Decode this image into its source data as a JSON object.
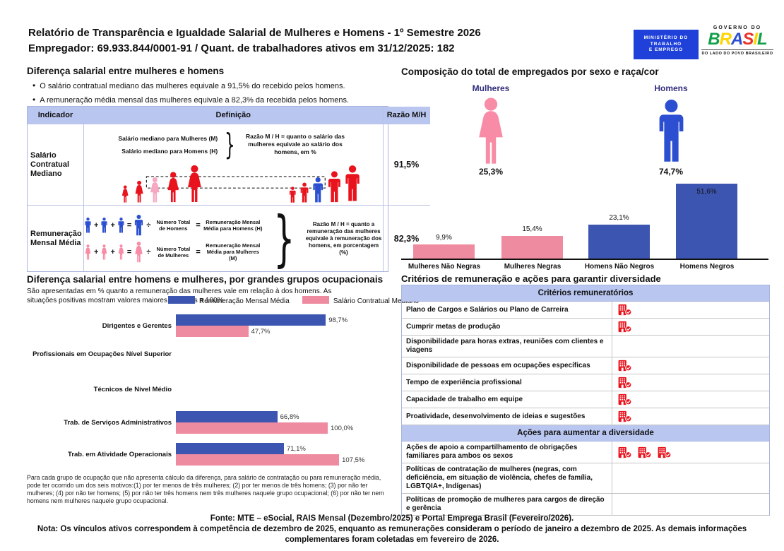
{
  "header": {
    "title": "Relatório de Transparência e Igualdade Salarial de Mulheres e Homens - 1º Semestre 2026",
    "employer_line": "Empregador: 69.933.844/0001-91 / Quant. de trabalhadores ativos em 31/12/2025: 182",
    "logos": {
      "ministry_lines": [
        "MINISTÉRIO DO",
        "TRABALHO",
        "E EMPREGO"
      ],
      "gov_top": "GOVERNO DO",
      "gov_name": "BRASIL",
      "gov_tagline": "DO LADO DO POVO BRASILEIRO"
    }
  },
  "salary_gap": {
    "title": "Diferença salarial entre mulheres e homens",
    "bullets": [
      "O salário contratual mediano das mulheres equivale a 91,5% do recebido pelos homens.",
      "A remuneração média mensal das mulheres equivale a 82,3% da recebida pelos homens."
    ],
    "table": {
      "headers": [
        "Indicador",
        "Definição",
        "Razão M/H"
      ],
      "rows": [
        {
          "indicator": "Salário Contratual Mediano",
          "def_lines": [
            "Salário mediano para Mulheres (M)",
            "Salário mediano para Homens (H)"
          ],
          "def_note": "Razão M / H = quanto o salário das mulheres equivale ao salário dos homens, em %",
          "ratio": "91,5%"
        },
        {
          "indicator": "Remuneração Mensal Média",
          "formula_men": {
            "divisor": "Número Total de Homens",
            "result": "Remuneração Mensal Média para Homens (H)"
          },
          "formula_women": {
            "divisor": "Número Total de Mulheres",
            "result": "Remuneração Mensal Média para Mulheres (M)"
          },
          "def_note": "Razão M / H = quanto a remuneração das mulheres equivale à remuneração dos homens, em porcentagem (%)",
          "ratio": "82,3%"
        }
      ]
    }
  },
  "occupation_gap": {
    "title": "Diferença salarial entre homens e mulheres, por grandes grupos ocupacionais",
    "subtitle": "São apresentadas em % quanto a remuneração das mulheres vale em relação à dos homens. As situações positivas mostram valores maiores ou iguais a 100%",
    "legend": [
      {
        "label": "Remuneração Mensal Média",
        "color": "#3c55b0"
      },
      {
        "label": "Salário Contratual Mediano",
        "color": "#ef8ba1"
      }
    ],
    "footnote": "Para cada grupo de ocupação que não apresenta cálculo da diferença, para salário de contratação ou para remuneração média, pode ter ocorrido um dos seis motivos:(1) por ter menos de três mulheres; (2) por ter menos de três homens; (3) por não ter mulheres; (4) por não ter homens; (5) por não ter três homens nem três mulheres naquele grupo ocupacional; (6) por não ter nem homens nem mulheres naquele grupo ocupacional."
  },
  "composition": {
    "title": "Composição do total de empregados por sexo e raça/cor",
    "female_label": "Mulheres",
    "female_pct": "25,3%",
    "male_label": "Homens",
    "male_pct": "74,7%"
  },
  "criteria": {
    "title": "Critérios de remuneração e ações para garantir diversidade",
    "sections": [
      {
        "header": "Critérios remuneratórios",
        "rows": [
          {
            "label": "Plano de Cargos e Salários ou Plano de Carreira",
            "icons": 1
          },
          {
            "label": "Cumprir metas de produção",
            "icons": 1
          },
          {
            "label": "Disponibilidade para horas extras, reuniões com clientes e viagens",
            "icons": 0
          },
          {
            "label": "Disponibilidade de pessoas em ocupações específicas",
            "icons": 1
          },
          {
            "label": "Tempo de experiência profissional",
            "icons": 1
          },
          {
            "label": "Capacidade de trabalho em equipe",
            "icons": 1
          },
          {
            "label": "Proatividade, desenvolvimento de ideias e sugestões",
            "icons": 1
          }
        ]
      },
      {
        "header": "Ações para aumentar a diversidade",
        "rows": [
          {
            "label": "Ações de apoio a compartilhamento de obrigações familiares para ambos os sexos",
            "icons": 3
          },
          {
            "label": "Políticas de contratação de mulheres (negras, com deficiência, em situação de violência, chefes de família, LGBTQIA+, Indígenas)",
            "icons": 0
          },
          {
            "label": "Políticas de promoção de mulheres para cargos de direção e gerência",
            "icons": 0
          }
        ]
      }
    ]
  },
  "footer": {
    "fonte": "Fonte: MTE – eSocial, RAIS Mensal (Dezembro/2025) e Portal Emprega Brasil (Fevereiro/2026).",
    "nota": "Nota: Os vínculos ativos correspondem à competência de dezembro de 2025, enquanto as remunerações consideram o período de janeiro a dezembro de 2025. As demais informações complementares foram coletadas em fevereiro de 2026."
  },
  "colors": {
    "bar_blue": "#3c55b0",
    "bar_pink": "#ef8ba1",
    "figure_blue": "#2b4fd0",
    "figure_pink": "#f88ca6",
    "highlight_pink": "#f5a8c0",
    "figure_red": "#e8131d",
    "icon_red": "#e8131d",
    "table_header_bg": "#b9c6f0",
    "label_purple": "#332e7d",
    "ministry_blue": "#1f41d9"
  },
  "chart_data": [
    {
      "type": "bar",
      "title": "Composição do total de empregados por sexo e raça/cor",
      "categories": [
        "Mulheres Não Negras",
        "Mulheres Negras",
        "Homens Não Negros",
        "Homens Negros"
      ],
      "values": [
        9.9,
        15.4,
        23.1,
        51.6
      ],
      "value_labels": [
        "9,9%",
        "15,4%",
        "23,1%",
        "51,6%"
      ],
      "bar_colors": [
        "#ef8ba1",
        "#ef8ba1",
        "#3c55b0",
        "#3c55b0"
      ],
      "ylim": [
        0,
        55
      ],
      "grid": false,
      "summary": {
        "Mulheres": 25.3,
        "Homens": 74.7
      }
    },
    {
      "type": "bar",
      "orientation": "horizontal",
      "title": "Diferença salarial entre homens e mulheres, por grandes grupos ocupacionais",
      "categories": [
        "Dirigentes e Gerentes",
        "Profissionais em Ocupações Nível Superior",
        "Técnicos de Nível Médio",
        "Trab. de Serviços Administrativos",
        "Trab. em Atividade Operacionais"
      ],
      "series": [
        {
          "name": "Remuneração Mensal Média",
          "color": "#3c55b0",
          "values": [
            98.7,
            null,
            null,
            66.8,
            71.1
          ],
          "labels": [
            "98,7%",
            "",
            "",
            "66,8%",
            "71,1%"
          ]
        },
        {
          "name": "Salário Contratual Mediano",
          "color": "#ef8ba1",
          "values": [
            47.7,
            null,
            null,
            100.0,
            107.5
          ],
          "labels": [
            "47,7%",
            "",
            "",
            "100,0%",
            "107,5%"
          ]
        }
      ],
      "xlim": [
        0,
        115
      ],
      "grid": false,
      "legend_position": "top"
    }
  ]
}
